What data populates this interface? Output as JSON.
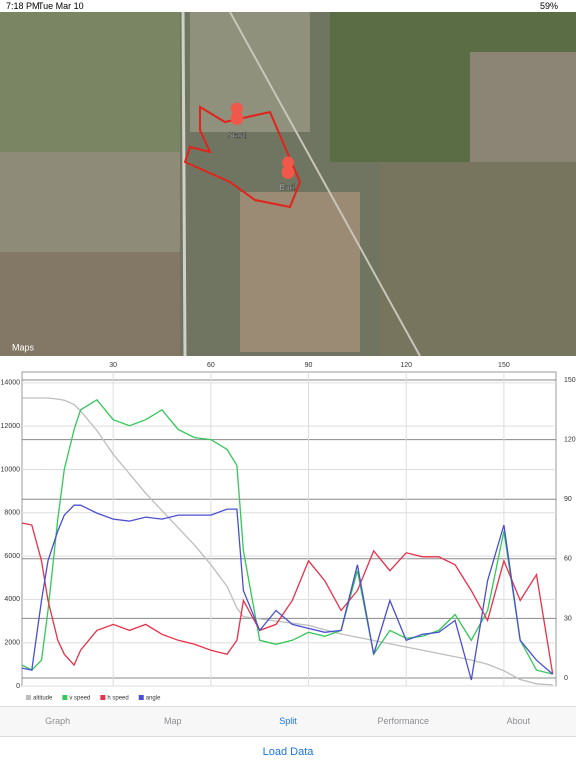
{
  "status_bar": {
    "time": "7:18 PM",
    "date": "Tue Mar 10",
    "battery": "59%"
  },
  "map": {
    "start_label": "Start!",
    "end_label": "End!",
    "attribution": "Maps"
  },
  "chart_data": {
    "type": "line",
    "x": [
      2,
      5,
      8,
      10,
      13,
      15,
      18,
      20,
      25,
      30,
      35,
      40,
      45,
      50,
      55,
      60,
      65,
      68,
      70,
      75,
      80,
      85,
      90,
      95,
      100,
      105,
      110,
      115,
      120,
      125,
      130,
      135,
      140,
      145,
      150,
      155,
      160,
      165
    ],
    "xlim": [
      2,
      166
    ],
    "xticks": [
      30,
      60,
      90,
      120,
      150
    ],
    "ylim": [
      0,
      14500
    ],
    "yticks": [
      0,
      2000,
      4000,
      6000,
      8000,
      10000,
      12000,
      14000
    ],
    "y2lim": [
      -4,
      154
    ],
    "y2ticks": [
      0,
      30,
      60,
      90,
      120,
      150
    ],
    "grid": true,
    "series": [
      {
        "name": "altitude",
        "color": "#bdbdbd",
        "values": [
          13300,
          13300,
          13300,
          13300,
          13250,
          13200,
          13000,
          12700,
          11800,
          10700,
          9800,
          8900,
          8100,
          7300,
          6500,
          5600,
          4600,
          3600,
          3200,
          3100,
          3000,
          2900,
          2800,
          2600,
          2400,
          2250,
          2100,
          1950,
          1800,
          1650,
          1500,
          1350,
          1200,
          1000,
          700,
          300,
          100,
          50
        ]
      },
      {
        "name": "v speed",
        "color": "#34c759",
        "axis": "y2",
        "values": [
          6.5,
          4,
          9,
          34,
          80,
          105,
          125,
          135,
          140,
          130,
          127,
          130,
          135,
          125,
          121,
          120,
          115,
          107,
          64,
          19,
          17,
          19,
          23,
          21,
          24,
          54,
          12,
          24,
          20,
          21,
          24,
          32,
          19,
          34,
          74,
          19,
          4,
          2
        ]
      },
      {
        "name": "h speed",
        "color": "#e8304a",
        "axis": "y2",
        "values": [
          78,
          77,
          59,
          39,
          19,
          12,
          6.5,
          14,
          24,
          27,
          24,
          27,
          22,
          19,
          17,
          14,
          12,
          19,
          39,
          24,
          27,
          39,
          59,
          49,
          34,
          44,
          64,
          54,
          63,
          61,
          61,
          57,
          44,
          29,
          59,
          39,
          52,
          2
        ]
      },
      {
        "name": "angle",
        "color": "#4a4fd1",
        "axis": "y2",
        "values": [
          5,
          4,
          39,
          59,
          74,
          82,
          87,
          87,
          83,
          80,
          79,
          81,
          80,
          82,
          82,
          82,
          85,
          85,
          44,
          24,
          34,
          27,
          25,
          23,
          24,
          57,
          12,
          39,
          19,
          22,
          23,
          29,
          -1,
          49,
          77,
          19,
          9,
          2
        ]
      }
    ]
  },
  "tabs": [
    "Graph",
    "Map",
    "Split",
    "Performance",
    "About"
  ],
  "active_tab": 2,
  "button": "Load Data"
}
